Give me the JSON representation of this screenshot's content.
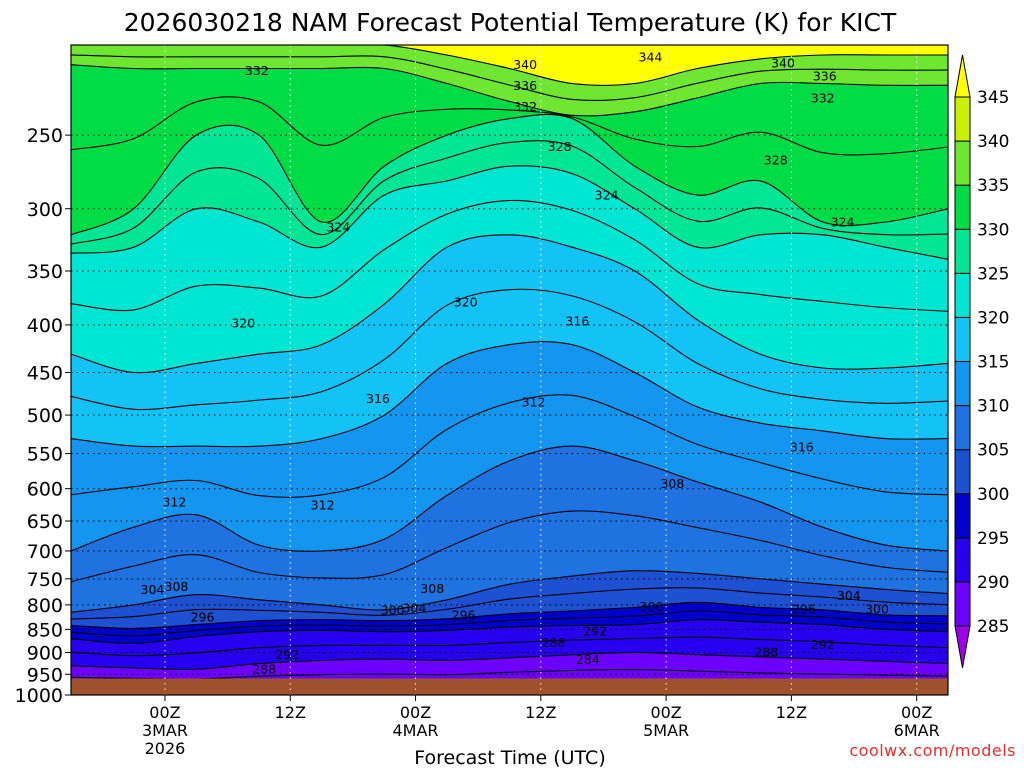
{
  "chart_data": {
    "type": "heatmap",
    "title": "2026030218 NAM Forecast Potential Temperature (K) for KICT",
    "xlabel": "Forecast Time (UTC)",
    "ylabel": "",
    "credit": "coolwx.com/models",
    "x_range_hours": [
      -9,
      75
    ],
    "y_range_hpa": [
      200,
      1000
    ],
    "y_ticks": [
      "250",
      "300",
      "350",
      "400",
      "450",
      "500",
      "550",
      "600",
      "650",
      "700",
      "750",
      "800",
      "850",
      "900",
      "950",
      "1000"
    ],
    "x_ticks": [
      {
        "hour": 0,
        "lines": [
          "00Z",
          "3MAR",
          "2026"
        ]
      },
      {
        "hour": 12,
        "lines": [
          "12Z"
        ]
      },
      {
        "hour": 24,
        "lines": [
          "00Z",
          "4MAR"
        ]
      },
      {
        "hour": 36,
        "lines": [
          "12Z"
        ]
      },
      {
        "hour": 48,
        "lines": [
          "00Z",
          "5MAR"
        ]
      },
      {
        "hour": 60,
        "lines": [
          "12Z"
        ]
      },
      {
        "hour": 72,
        "lines": [
          "00Z",
          "6MAR"
        ]
      }
    ],
    "colorbar": {
      "labels": [
        "285",
        "290",
        "295",
        "300",
        "305",
        "310",
        "315",
        "320",
        "325",
        "330",
        "335",
        "340",
        "345"
      ],
      "colors": [
        "#a000e6",
        "#6e00ff",
        "#2800f0",
        "#0000cd",
        "#1e50d2",
        "#1e73e1",
        "#1496f0",
        "#14c3f5",
        "#00e6d2",
        "#00e696",
        "#00dc46",
        "#6ee632",
        "#c8f000",
        "#ffff00"
      ]
    },
    "ground_color": "#a0522d",
    "ground_level_hpa": 960,
    "contour_interval_k": 4,
    "contour_labels": [
      {
        "value": "344",
        "hour": 46.5,
        "p": 206
      },
      {
        "value": "340",
        "hour": 34.5,
        "p": 210
      },
      {
        "value": "340",
        "hour": 59.2,
        "p": 209
      },
      {
        "value": "336",
        "hour": 34.5,
        "p": 221
      },
      {
        "value": "336",
        "hour": 63.2,
        "p": 216
      },
      {
        "value": "332",
        "hour": 8.8,
        "p": 213
      },
      {
        "value": "332",
        "hour": 34.5,
        "p": 233
      },
      {
        "value": "332",
        "hour": 63.0,
        "p": 228
      },
      {
        "value": "328",
        "hour": 37.8,
        "p": 257
      },
      {
        "value": "328",
        "hour": 58.5,
        "p": 266
      },
      {
        "value": "324",
        "hour": 16.6,
        "p": 314
      },
      {
        "value": "324",
        "hour": 42.3,
        "p": 290
      },
      {
        "value": "324",
        "hour": 64.9,
        "p": 310
      },
      {
        "value": "320",
        "hour": 28.8,
        "p": 378
      },
      {
        "value": "320",
        "hour": 7.5,
        "p": 398
      },
      {
        "value": "316",
        "hour": 39.5,
        "p": 396
      },
      {
        "value": "316",
        "hour": 20.4,
        "p": 480
      },
      {
        "value": "316",
        "hour": 61.0,
        "p": 541
      },
      {
        "value": "312",
        "hour": 35.3,
        "p": 484
      },
      {
        "value": "312",
        "hour": 0.9,
        "p": 620
      },
      {
        "value": "312",
        "hour": 15.1,
        "p": 625
      },
      {
        "value": "308",
        "hour": 48.6,
        "p": 592
      },
      {
        "value": "308",
        "hour": 1.1,
        "p": 764
      },
      {
        "value": "308",
        "hour": 25.6,
        "p": 768
      },
      {
        "value": "304",
        "hour": -1.2,
        "p": 770
      },
      {
        "value": "304",
        "hour": 23.9,
        "p": 806
      },
      {
        "value": "304",
        "hour": 65.5,
        "p": 782
      },
      {
        "value": "300",
        "hour": 21.8,
        "p": 810
      },
      {
        "value": "300",
        "hour": 46.6,
        "p": 803
      },
      {
        "value": "300",
        "hour": 68.2,
        "p": 808
      },
      {
        "value": "296",
        "hour": 3.6,
        "p": 824
      },
      {
        "value": "296",
        "hour": 28.6,
        "p": 820
      },
      {
        "value": "296",
        "hour": 61.2,
        "p": 808
      },
      {
        "value": "292",
        "hour": 41.2,
        "p": 853
      },
      {
        "value": "292",
        "hour": 11.7,
        "p": 905
      },
      {
        "value": "292",
        "hour": 63.0,
        "p": 882
      },
      {
        "value": "288",
        "hour": 37.2,
        "p": 878
      },
      {
        "value": "288",
        "hour": 9.5,
        "p": 938
      },
      {
        "value": "288",
        "hour": 57.6,
        "p": 899
      },
      {
        "value": "284",
        "hour": 40.5,
        "p": 916
      }
    ],
    "isentrope_levels": [
      {
        "k": 285,
        "p": [
          985,
          985,
          985,
          985,
          985,
          985,
          985,
          980,
          978,
          980,
          982,
          985,
          985,
          985,
          985
        ]
      },
      {
        "k": 290,
        "p": [
          930,
          935,
          938,
          925,
          918,
          915,
          918,
          912,
          905,
          900,
          905,
          910,
          915,
          920,
          925
        ]
      },
      {
        "k": 295,
        "p": [
          870,
          880,
          865,
          855,
          852,
          855,
          852,
          845,
          842,
          840,
          830,
          835,
          840,
          850,
          855
        ]
      },
      {
        "k": 300,
        "p": [
          842,
          848,
          840,
          832,
          830,
          832,
          828,
          818,
          812,
          805,
          795,
          805,
          810,
          820,
          822
        ]
      },
      {
        "k": 305,
        "p": [
          815,
          800,
          780,
          790,
          800,
          810,
          790,
          760,
          745,
          735,
          740,
          750,
          760,
          770,
          778
        ]
      },
      {
        "k": 310,
        "p": [
          700,
          660,
          640,
          690,
          700,
          680,
          610,
          560,
          540,
          560,
          590,
          620,
          660,
          690,
          700
        ]
      },
      {
        "k": 315,
        "p": [
          530,
          540,
          540,
          540,
          530,
          500,
          440,
          420,
          420,
          450,
          490,
          510,
          520,
          530,
          530
        ]
      },
      {
        "k": 320,
        "p": [
          430,
          450,
          440,
          430,
          420,
          380,
          330,
          320,
          330,
          350,
          395,
          430,
          445,
          445,
          440
        ]
      },
      {
        "k": 325,
        "p": [
          335,
          330,
          300,
          310,
          330,
          290,
          280,
          270,
          275,
          300,
          330,
          320,
          320,
          330,
          340
        ]
      },
      {
        "k": 330,
        "p": [
          320,
          300,
          250,
          250,
          310,
          270,
          250,
          240,
          240,
          270,
          290,
          280,
          310,
          310,
          300
        ]
      },
      {
        "k": 335,
        "p": [
          210,
          212,
          212,
          212,
          212,
          212,
          220,
          230,
          238,
          236,
          228,
          220,
          220,
          221,
          221
        ]
      },
      {
        "k": 340,
        "p": [
          200,
          200,
          200,
          200,
          200,
          200,
          205,
          212,
          220,
          220,
          212,
          207,
          205,
          205,
          205
        ]
      }
    ],
    "isentrope_hours": [
      -9,
      -3,
      3,
      9,
      15,
      21,
      27,
      33,
      39,
      45,
      51,
      57,
      63,
      69,
      75
    ]
  }
}
